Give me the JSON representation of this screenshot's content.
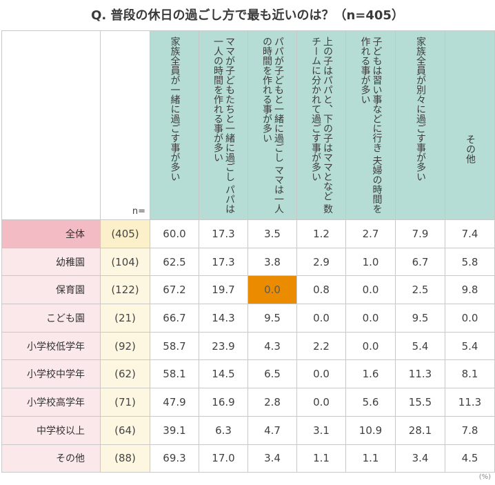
{
  "title": "Q. 普段の休日の過ごし方で最も近いのは？（n=405）",
  "n_label": "n=",
  "unit": "(%)",
  "highlight_color": "#ea8b00",
  "chart_data": {
    "type": "table",
    "title": "Q. 普段の休日の過ごし方で最も近いのは？（n=405）",
    "columns": [
      "家族全員が一緒に過ごす事が多い",
      "ママが子どもたちと一緒に過ごし パパは一人の時間を作れる事が多い",
      "パパが子どもと一緒に過ごし ママは一人の時間を作れる事が多い",
      "上の子はパパと、下の子はママとなど 数チームに分かれて過ごす事が多い",
      "子どもは習い事などに行き 夫婦の時間を作れる事が多い",
      "家族全員が別々に過ごす事が多い",
      "その他"
    ],
    "rows": [
      {
        "label": "全体",
        "n": "(405)",
        "values": [
          "60.0",
          "17.3",
          "3.5",
          "1.2",
          "2.7",
          "7.9",
          "7.4"
        ]
      },
      {
        "label": "幼稚園",
        "n": "(104)",
        "values": [
          "62.5",
          "17.3",
          "3.8",
          "2.9",
          "1.0",
          "6.7",
          "5.8"
        ]
      },
      {
        "label": "保育園",
        "n": "(122)",
        "values": [
          "67.2",
          "19.7",
          "0.0",
          "0.8",
          "0.0",
          "2.5",
          "9.8"
        ]
      },
      {
        "label": "こども園",
        "n": "(21)",
        "values": [
          "66.7",
          "14.3",
          "9.5",
          "0.0",
          "0.0",
          "9.5",
          "0.0"
        ]
      },
      {
        "label": "小学校低学年",
        "n": "(92)",
        "values": [
          "58.7",
          "23.9",
          "4.3",
          "2.2",
          "0.0",
          "5.4",
          "5.4"
        ]
      },
      {
        "label": "小学校中学年",
        "n": "(62)",
        "values": [
          "58.1",
          "14.5",
          "6.5",
          "0.0",
          "1.6",
          "11.3",
          "8.1"
        ]
      },
      {
        "label": "小学校高学年",
        "n": "(71)",
        "values": [
          "47.9",
          "16.9",
          "2.8",
          "0.0",
          "5.6",
          "15.5",
          "11.3"
        ]
      },
      {
        "label": "中学校以上",
        "n": "(64)",
        "values": [
          "39.1",
          "6.3",
          "4.7",
          "3.1",
          "10.9",
          "28.1",
          "7.8"
        ]
      },
      {
        "label": "その他",
        "n": "(88)",
        "values": [
          "69.3",
          "17.0",
          "3.4",
          "1.1",
          "1.1",
          "3.4",
          "4.5"
        ]
      }
    ],
    "highlighted_cell": {
      "row": 2,
      "col": 2
    }
  }
}
